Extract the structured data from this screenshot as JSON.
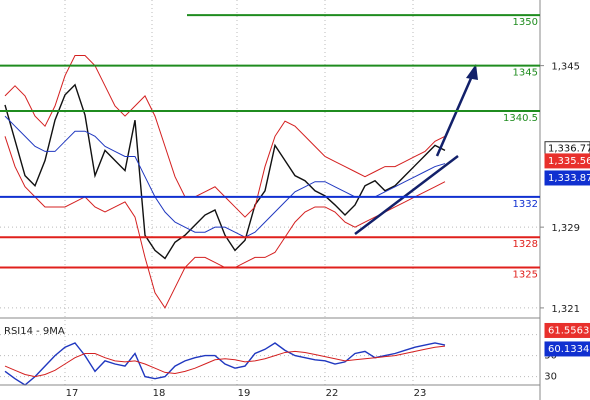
{
  "chart_data": {
    "type": "line",
    "x": [
      0,
      1,
      2,
      3,
      4,
      5,
      6,
      7,
      8,
      9,
      10,
      11,
      12,
      13,
      14,
      15,
      16,
      17,
      18,
      19,
      20,
      21,
      22,
      23,
      24,
      25,
      26,
      27,
      28,
      29,
      30,
      31,
      32,
      33,
      34,
      35,
      36,
      37,
      38,
      39,
      40,
      41,
      42,
      43,
      44
    ],
    "xlim": [
      0,
      53.5
    ],
    "xticks": [
      {
        "value": 6,
        "label": "17"
      },
      {
        "value": 14.7,
        "label": "18"
      },
      {
        "value": 23.2,
        "label": "19"
      },
      {
        "value": 32,
        "label": "22"
      },
      {
        "value": 40.8,
        "label": "23"
      }
    ],
    "ylim": [
      1320,
      1351.5
    ],
    "yticks": [
      {
        "value": 1345,
        "label": "1,345"
      },
      {
        "value": 1329,
        "label": "1,329"
      },
      {
        "value": 1321,
        "label": "1,321"
      }
    ],
    "grid": true,
    "series": [
      {
        "name": "price",
        "color": "#111111",
        "values": [
          1341.1,
          1337.6,
          1334.1,
          1333.1,
          1335.6,
          1339.6,
          1342.1,
          1343.1,
          1340.1,
          1334.1,
          1336.6,
          1335.6,
          1334.6,
          1339.6,
          1328.2,
          1326.7,
          1325.9,
          1327.5,
          1328.2,
          1329.2,
          1330.2,
          1330.7,
          1328.2,
          1326.7,
          1327.7,
          1331.2,
          1332.6,
          1337.1,
          1335.6,
          1334.1,
          1333.6,
          1332.6,
          1332.1,
          1331.2,
          1330.2,
          1331.2,
          1333.1,
          1333.6,
          1332.6,
          1333.1,
          1334.1,
          1335.1,
          1336.1,
          1337.1,
          1336.6
        ]
      },
      {
        "name": "moving average",
        "color": "#2038c0",
        "values": [
          1340,
          1339,
          1338,
          1337,
          1336.5,
          1336.5,
          1337.5,
          1338.5,
          1338.5,
          1338,
          1337,
          1336.5,
          1336,
          1336,
          1334,
          1332,
          1330.5,
          1329.5,
          1329,
          1328.5,
          1328.5,
          1329,
          1329,
          1328.5,
          1328,
          1328.5,
          1329.5,
          1330.5,
          1331.5,
          1332.5,
          1333,
          1333.5,
          1333.5,
          1333,
          1332.5,
          1332,
          1332,
          1332,
          1332.5,
          1333,
          1333.5,
          1334,
          1334.5,
          1335,
          1335.3
        ]
      },
      {
        "name": "upper band",
        "color": "#d42020",
        "values": [
          1342,
          1343,
          1342,
          1340,
          1339,
          1341,
          1344,
          1346,
          1346,
          1345,
          1343,
          1341,
          1340,
          1341,
          1342,
          1340,
          1337,
          1334,
          1332,
          1332,
          1332.5,
          1333,
          1332,
          1331,
          1330,
          1331,
          1335,
          1338,
          1339.5,
          1339,
          1338,
          1337,
          1336,
          1335.5,
          1335,
          1334.5,
          1334,
          1334.5,
          1335,
          1335,
          1335.5,
          1336,
          1336.5,
          1337.5,
          1338
        ]
      },
      {
        "name": "lower band",
        "color": "#d42020",
        "values": [
          1338,
          1335,
          1333,
          1332,
          1331,
          1331,
          1331,
          1331.5,
          1332,
          1331,
          1330.5,
          1331,
          1331.5,
          1330,
          1326,
          1322.5,
          1321,
          1323,
          1325,
          1326,
          1326,
          1325.5,
          1325,
          1325,
          1325.5,
          1326,
          1326,
          1326.5,
          1328,
          1329.5,
          1330.5,
          1331,
          1331,
          1330.5,
          1329.5,
          1329,
          1329.5,
          1330,
          1330.5,
          1331,
          1331.5,
          1332,
          1332.5,
          1333,
          1333.5
        ]
      }
    ],
    "levels": [
      {
        "value": 1350,
        "color": "#1f8c1f"
      },
      {
        "value": 1345,
        "color": "#1f8c1f"
      },
      {
        "value": 1340.5,
        "color": "#1f8c1f"
      },
      {
        "value": 1332,
        "color": "#1030d0"
      },
      {
        "value": 1328,
        "color": "#e0201c"
      },
      {
        "value": 1325,
        "color": "#e0201c"
      }
    ],
    "price_tags": [
      {
        "value": 1336.77,
        "label": "1,336.77",
        "color": "#ffffff"
      },
      {
        "value": 1335.56,
        "label": "1,335.56",
        "color": "#e8302c"
      },
      {
        "value": 1333.87,
        "label": "1,333.87",
        "color": "#1030d0"
      }
    ],
    "rsi": {
      "title": "RSI14 - 9MA",
      "ylim": [
        22,
        82
      ],
      "yticks": [
        70,
        50,
        30
      ],
      "series": [
        {
          "name": "RSI14",
          "color": "#2038c0",
          "values": [
            35,
            28,
            22,
            30,
            40,
            50,
            58,
            62,
            50,
            35,
            45,
            42,
            40,
            52,
            30,
            28,
            30,
            40,
            45,
            48,
            50,
            50,
            42,
            38,
            40,
            52,
            56,
            62,
            55,
            50,
            48,
            46,
            45,
            42,
            44,
            52,
            54,
            48,
            50,
            52,
            55,
            58,
            60,
            62,
            60
          ]
        },
        {
          "name": "9MA",
          "color": "#d42020",
          "values": [
            40,
            36,
            32,
            30,
            32,
            36,
            42,
            48,
            52,
            52,
            48,
            45,
            44,
            45,
            42,
            38,
            34,
            33,
            35,
            38,
            42,
            46,
            47,
            46,
            44,
            45,
            47,
            50,
            53,
            54,
            53,
            51,
            49,
            47,
            45,
            46,
            47,
            48,
            49,
            50,
            52,
            54,
            56,
            58,
            59
          ]
        }
      ],
      "tags": [
        {
          "value": 61.5563,
          "label": "61.5563",
          "color": "#e8302c"
        },
        {
          "value": 60.1334,
          "label": "60.1334",
          "color": "#1030d0"
        }
      ]
    }
  }
}
